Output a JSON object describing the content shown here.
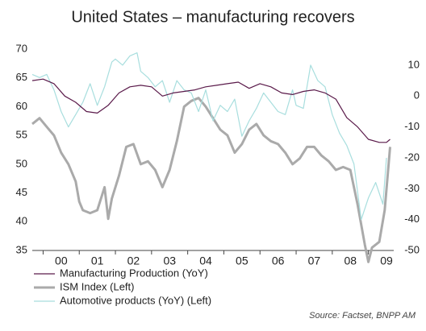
{
  "chart_data": {
    "type": "line",
    "title": "United States – manufacturing recovers",
    "source": "Source: Factset, BNPP AM",
    "xlim": [
      1999.7,
      2009.7
    ],
    "xticks": [
      {
        "value": 2000.5,
        "label": "00"
      },
      {
        "value": 2001.5,
        "label": "01"
      },
      {
        "value": 2002.5,
        "label": "02"
      },
      {
        "value": 2003.5,
        "label": "03"
      },
      {
        "value": 2004.5,
        "label": "04"
      },
      {
        "value": 2005.5,
        "label": "05"
      },
      {
        "value": 2006.5,
        "label": "06"
      },
      {
        "value": 2007.5,
        "label": "07"
      },
      {
        "value": 2008.5,
        "label": "08"
      },
      {
        "value": 2009.5,
        "label": "09"
      }
    ],
    "ylim": [
      35,
      70
    ],
    "yticks": [
      35,
      40,
      45,
      50,
      55,
      60,
      65,
      70
    ],
    "y2lim": [
      -50,
      15.2
    ],
    "y2ticks": [
      -50,
      -40,
      -30,
      -20,
      -10,
      0,
      10
    ],
    "series": [
      {
        "name": "Manufacturing Production (YoY)",
        "color": "#5a1a4a",
        "axis": "y2",
        "width": 1.2,
        "x": [
          1999.7,
          2000.0,
          2000.3,
          2000.6,
          2000.9,
          2001.2,
          2001.5,
          2001.8,
          2002.1,
          2002.4,
          2002.7,
          2003.0,
          2003.3,
          2003.6,
          2003.9,
          2004.2,
          2004.5,
          2004.8,
          2005.1,
          2005.4,
          2005.7,
          2006.0,
          2006.3,
          2006.6,
          2006.9,
          2007.2,
          2007.5,
          2007.8,
          2008.1,
          2008.4,
          2008.7,
          2009.0,
          2009.3,
          2009.5,
          2009.6
        ],
        "values": [
          5,
          5.5,
          4,
          0,
          -2,
          -5,
          -5.5,
          -3,
          1,
          3,
          3.5,
          3,
          0,
          1,
          1.5,
          2,
          3,
          3.5,
          4,
          4.5,
          2.5,
          4,
          3,
          1,
          0.5,
          1.5,
          2,
          1,
          -1,
          -7,
          -10,
          -14,
          -15,
          -15,
          -14
        ]
      },
      {
        "name": "ISM Index  (Left)",
        "color": "#aaaaaa",
        "axis": "y",
        "width": 3,
        "x": [
          1999.7,
          1999.9,
          2000.1,
          2000.3,
          2000.5,
          2000.7,
          2000.9,
          2001.0,
          2001.1,
          2001.3,
          2001.5,
          2001.7,
          2001.8,
          2001.9,
          2002.1,
          2002.3,
          2002.5,
          2002.7,
          2002.9,
          2003.1,
          2003.3,
          2003.5,
          2003.7,
          2003.9,
          2004.1,
          2004.3,
          2004.5,
          2004.7,
          2004.9,
          2005.1,
          2005.3,
          2005.5,
          2005.7,
          2005.9,
          2006.1,
          2006.3,
          2006.5,
          2006.7,
          2006.9,
          2007.1,
          2007.3,
          2007.5,
          2007.7,
          2007.9,
          2008.1,
          2008.3,
          2008.5,
          2008.7,
          2008.9,
          2009.0,
          2009.1,
          2009.3,
          2009.45,
          2009.6
        ],
        "values": [
          57,
          58,
          56.5,
          55,
          52,
          50,
          47,
          43.5,
          42,
          41.5,
          42,
          46,
          40.5,
          44,
          48,
          53,
          53.5,
          50,
          50.5,
          49,
          46,
          49,
          54,
          60,
          61,
          61.5,
          60,
          58,
          56,
          55,
          52,
          53.5,
          56,
          57,
          55,
          54,
          53.5,
          52,
          50,
          51,
          53,
          53,
          51.5,
          50.5,
          49,
          49.5,
          49,
          43,
          36,
          33,
          35.5,
          36.5,
          42,
          53
        ]
      },
      {
        "name": "Automotive products (YoY)  (Left)",
        "color": "#a8dede",
        "axis": "y2",
        "width": 1.2,
        "x": [
          1999.7,
          1999.9,
          2000.1,
          2000.3,
          2000.5,
          2000.7,
          2000.9,
          2001.1,
          2001.3,
          2001.5,
          2001.7,
          2001.9,
          2002.0,
          2002.2,
          2002.4,
          2002.6,
          2002.7,
          2002.9,
          2003.1,
          2003.3,
          2003.5,
          2003.7,
          2003.9,
          2004.1,
          2004.3,
          2004.5,
          2004.7,
          2004.9,
          2005.1,
          2005.3,
          2005.5,
          2005.7,
          2005.9,
          2006.1,
          2006.3,
          2006.5,
          2006.7,
          2006.9,
          2007.0,
          2007.2,
          2007.4,
          2007.6,
          2007.8,
          2008.0,
          2008.2,
          2008.4,
          2008.6,
          2008.8,
          2009.0,
          2009.2,
          2009.4,
          2009.5
        ],
        "values": [
          7,
          6,
          7,
          2,
          -5,
          -10,
          -6,
          -2,
          4,
          -3,
          3,
          11,
          12,
          10,
          13,
          14,
          8,
          6,
          3,
          5,
          -2,
          5,
          2,
          1,
          -5,
          2,
          -8,
          -3,
          -5,
          -1,
          -13,
          -8,
          -4,
          1,
          -2,
          -5,
          -6,
          2,
          -3,
          -4,
          10,
          5,
          3,
          -6,
          -12,
          -16,
          -22,
          -40,
          -33,
          -28,
          -35,
          -20
        ]
      }
    ]
  }
}
